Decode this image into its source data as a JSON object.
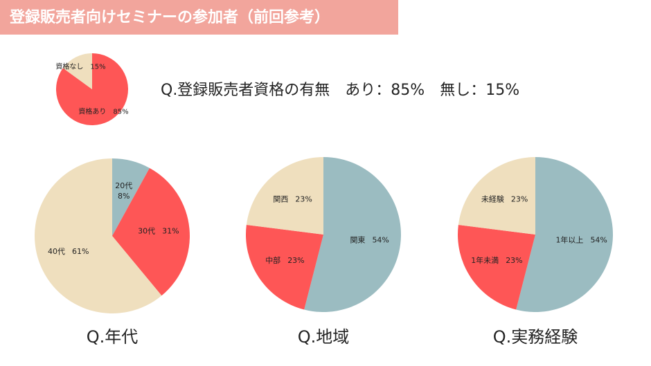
{
  "slide_title": "登録販売者向けセミナーの参加者（前回参考）",
  "chart_data": [
    {
      "type": "pie",
      "title": "Q.登録販売者資格の有無　あり：85%　無し：15%",
      "categories": [
        "資格あり",
        "資格なし"
      ],
      "values": [
        85,
        15
      ],
      "value_labels": [
        "85%",
        "15%"
      ],
      "colors": [
        "#fe5656",
        "#efdfbe"
      ]
    },
    {
      "type": "pie",
      "title": "Q.年代",
      "categories": [
        "20代",
        "30代",
        "40代"
      ],
      "values": [
        8,
        31,
        61
      ],
      "value_labels": [
        "8%",
        "31%",
        "61%"
      ],
      "colors": [
        "#9bbcc1",
        "#fe5656",
        "#efdfbe"
      ]
    },
    {
      "type": "pie",
      "title": "Q.地域",
      "categories": [
        "関東",
        "中部",
        "関西"
      ],
      "values": [
        54,
        23,
        23
      ],
      "value_labels": [
        "54%",
        "23%",
        "23%"
      ],
      "colors": [
        "#9bbcc1",
        "#fe5656",
        "#efdfbe"
      ]
    },
    {
      "type": "pie",
      "title": "Q.実務経験",
      "categories": [
        "1年以上",
        "1年未満",
        "未経験"
      ],
      "values": [
        54,
        23,
        23
      ],
      "value_labels": [
        "54%",
        "23%",
        "23%"
      ],
      "colors": [
        "#9bbcc1",
        "#fe5656",
        "#efdfbe"
      ]
    }
  ]
}
